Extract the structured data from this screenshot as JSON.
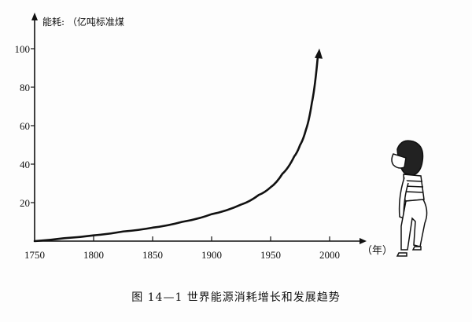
{
  "chart_data": {
    "type": "line",
    "title": "",
    "ylabel": "能耗: （亿吨标准煤",
    "xlabel": "（年）",
    "xlim": [
      1750,
      2010
    ],
    "ylim": [
      0,
      100
    ],
    "x_ticks": [
      1750,
      1800,
      1850,
      1900,
      1950,
      2000
    ],
    "y_ticks": [
      20,
      40,
      60,
      80,
      100
    ],
    "grid": false,
    "series": [
      {
        "x": [
          1750,
          1775,
          1800,
          1825,
          1850,
          1875,
          1900,
          1925,
          1940,
          1950,
          1960,
          1970,
          1975,
          1980,
          1985,
          1990
        ],
        "y": [
          0,
          1.5,
          3,
          5,
          7,
          10,
          14,
          19,
          24,
          28,
          35,
          44,
          50,
          58,
          72,
          96
        ]
      }
    ],
    "color": "#111111"
  },
  "caption": "图 14—1   世界能源消耗增长和发展趋势"
}
